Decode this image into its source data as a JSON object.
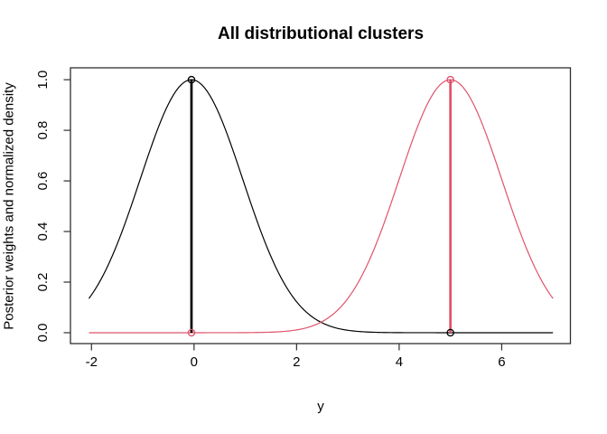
{
  "chart_data": {
    "type": "line",
    "title": "All distributional clusters",
    "xlabel": "y",
    "ylabel": "Posterior weights and normalized density",
    "xlim": [
      -2.41,
      7.34
    ],
    "ylim": [
      -0.043,
      1.047
    ],
    "grid": false,
    "legend": "none",
    "x_ticks": {
      "values": [
        -2,
        0,
        2,
        4,
        6
      ],
      "labels": [
        "-2",
        "0",
        "2",
        "4",
        "6"
      ]
    },
    "y_ticks": {
      "values": [
        0.0,
        0.2,
        0.4,
        0.6,
        0.8,
        1.0
      ],
      "labels": [
        "0.0",
        "0.2",
        "0.4",
        "0.6",
        "0.8",
        "1.0"
      ]
    },
    "series": [
      {
        "name": "cluster 1 normalized density",
        "shape": "gaussian",
        "mean": -0.05,
        "sd": 1.0,
        "peak": 1.0,
        "x_start": -2.05,
        "x_end": 7.0,
        "color": "#000000"
      },
      {
        "name": "cluster 2 normalized density",
        "shape": "gaussian",
        "mean": 5.0,
        "sd": 1.0,
        "peak": 1.0,
        "x_start": -2.05,
        "x_end": 7.0,
        "color": "#DF536B"
      }
    ],
    "weight_lines": [
      {
        "x": -0.05,
        "y_from": 0.0,
        "y_to": 1.0,
        "color": "#000000"
      },
      {
        "x": 5.0,
        "y_from": 0.0,
        "y_to": 1.0,
        "color": "#DF536B"
      }
    ],
    "points": [
      {
        "x": -0.05,
        "y": 1.0,
        "color": "#000000"
      },
      {
        "x": -0.05,
        "y": 0.0,
        "color": "#DF536B"
      },
      {
        "x": 5.0,
        "y": 1.0,
        "color": "#DF536B"
      },
      {
        "x": 5.0,
        "y": 0.0,
        "color": "#000000"
      }
    ],
    "colors": {
      "curve_black": "#000000",
      "curve_red": "#DF536B",
      "axis": "#2f2f2f",
      "text": "#000000"
    }
  }
}
